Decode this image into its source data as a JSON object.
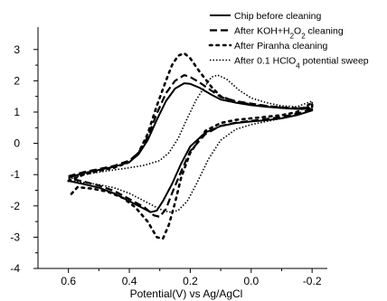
{
  "chart_data": {
    "type": "line",
    "title": "",
    "xlabel": "Potential(V) vs Ag/AgCl",
    "ylabel": "",
    "xlim": [
      0.7,
      -0.25
    ],
    "ylim": [
      -4,
      3.6
    ],
    "x_reversed": true,
    "xticks": [
      0.6,
      0.4,
      0.2,
      0.0,
      -0.2
    ],
    "xtick_labels": [
      "0.6",
      "0.4",
      "0.2",
      "0.0",
      "-0.2"
    ],
    "yticks": [
      -4,
      -3,
      -2,
      -1,
      0,
      1,
      2,
      3
    ],
    "yticks_labels": [
      "-4",
      "-3",
      "-2",
      "-1",
      "0",
      "1",
      "2",
      "3"
    ],
    "grid": false,
    "legend_position": "top-right",
    "series": [
      {
        "name": "Chip before cleaning",
        "style": "solid",
        "forward": [
          [
            0.6,
            -1.1
          ],
          [
            0.55,
            -0.95
          ],
          [
            0.5,
            -0.85
          ],
          [
            0.45,
            -0.75
          ],
          [
            0.4,
            -0.6
          ],
          [
            0.37,
            -0.35
          ],
          [
            0.34,
            0.1
          ],
          [
            0.31,
            0.75
          ],
          [
            0.28,
            1.35
          ],
          [
            0.25,
            1.75
          ],
          [
            0.22,
            1.92
          ],
          [
            0.2,
            1.9
          ],
          [
            0.17,
            1.78
          ],
          [
            0.13,
            1.55
          ],
          [
            0.1,
            1.4
          ],
          [
            0.05,
            1.3
          ],
          [
            0.0,
            1.22
          ],
          [
            -0.05,
            1.17
          ],
          [
            -0.1,
            1.13
          ],
          [
            -0.15,
            1.1
          ],
          [
            -0.2,
            1.1
          ]
        ],
        "reverse": [
          [
            -0.2,
            1.05
          ],
          [
            -0.15,
            0.9
          ],
          [
            -0.1,
            0.8
          ],
          [
            -0.05,
            0.74
          ],
          [
            0.0,
            0.7
          ],
          [
            0.05,
            0.65
          ],
          [
            0.1,
            0.55
          ],
          [
            0.15,
            0.35
          ],
          [
            0.2,
            -0.1
          ],
          [
            0.23,
            -0.65
          ],
          [
            0.26,
            -1.3
          ],
          [
            0.29,
            -1.85
          ],
          [
            0.31,
            -2.15
          ],
          [
            0.33,
            -2.2
          ],
          [
            0.36,
            -2.05
          ],
          [
            0.4,
            -1.85
          ],
          [
            0.45,
            -1.6
          ],
          [
            0.5,
            -1.42
          ],
          [
            0.55,
            -1.3
          ],
          [
            0.6,
            -1.2
          ]
        ]
      },
      {
        "name": "After KOH+H2O2 cleaning",
        "label_parts": [
          {
            "text": "After KOH+H",
            "sub": false
          },
          {
            "text": "2",
            "sub": true
          },
          {
            "text": "O",
            "sub": false
          },
          {
            "text": "2",
            "sub": true
          },
          {
            "text": " cleaning",
            "sub": false
          }
        ],
        "style": "dash",
        "forward": [
          [
            0.6,
            -1.05
          ],
          [
            0.55,
            -0.92
          ],
          [
            0.5,
            -0.82
          ],
          [
            0.45,
            -0.72
          ],
          [
            0.4,
            -0.55
          ],
          [
            0.37,
            -0.3
          ],
          [
            0.34,
            0.2
          ],
          [
            0.31,
            0.95
          ],
          [
            0.28,
            1.6
          ],
          [
            0.25,
            2.0
          ],
          [
            0.22,
            2.18
          ],
          [
            0.2,
            2.12
          ],
          [
            0.17,
            1.95
          ],
          [
            0.13,
            1.68
          ],
          [
            0.1,
            1.48
          ],
          [
            0.05,
            1.35
          ],
          [
            0.0,
            1.27
          ],
          [
            -0.05,
            1.2
          ],
          [
            -0.1,
            1.15
          ],
          [
            -0.15,
            1.12
          ],
          [
            -0.2,
            1.12
          ]
        ],
        "reverse": [
          [
            -0.2,
            1.08
          ],
          [
            -0.15,
            0.95
          ],
          [
            -0.1,
            0.84
          ],
          [
            -0.05,
            0.78
          ],
          [
            0.0,
            0.72
          ],
          [
            0.05,
            0.66
          ],
          [
            0.1,
            0.56
          ],
          [
            0.15,
            0.3
          ],
          [
            0.2,
            -0.25
          ],
          [
            0.23,
            -0.9
          ],
          [
            0.26,
            -1.6
          ],
          [
            0.28,
            -2.1
          ],
          [
            0.3,
            -2.35
          ],
          [
            0.32,
            -2.3
          ],
          [
            0.35,
            -2.05
          ],
          [
            0.4,
            -1.78
          ],
          [
            0.45,
            -1.52
          ],
          [
            0.5,
            -1.35
          ],
          [
            0.55,
            -1.22
          ],
          [
            0.6,
            -1.12
          ]
        ]
      },
      {
        "name": "After Piranha cleaning",
        "style": "dashdot",
        "forward": [
          [
            0.6,
            -1.2
          ],
          [
            0.55,
            -1.0
          ],
          [
            0.5,
            -0.88
          ],
          [
            0.45,
            -0.78
          ],
          [
            0.4,
            -0.6
          ],
          [
            0.37,
            -0.3
          ],
          [
            0.34,
            0.3
          ],
          [
            0.31,
            1.2
          ],
          [
            0.28,
            2.0
          ],
          [
            0.26,
            2.5
          ],
          [
            0.24,
            2.8
          ],
          [
            0.22,
            2.88
          ],
          [
            0.2,
            2.72
          ],
          [
            0.17,
            2.3
          ],
          [
            0.13,
            1.8
          ],
          [
            0.1,
            1.5
          ],
          [
            0.05,
            1.33
          ],
          [
            0.0,
            1.24
          ],
          [
            -0.05,
            1.18
          ],
          [
            -0.1,
            1.14
          ],
          [
            -0.15,
            1.12
          ],
          [
            -0.2,
            1.15
          ]
        ],
        "reverse": [
          [
            -0.2,
            1.3
          ],
          [
            -0.15,
            1.0
          ],
          [
            -0.1,
            0.9
          ],
          [
            -0.05,
            0.85
          ],
          [
            0.0,
            0.8
          ],
          [
            0.05,
            0.75
          ],
          [
            0.1,
            0.65
          ],
          [
            0.15,
            0.4
          ],
          [
            0.2,
            -0.3
          ],
          [
            0.23,
            -1.1
          ],
          [
            0.25,
            -1.9
          ],
          [
            0.27,
            -2.6
          ],
          [
            0.29,
            -3.05
          ],
          [
            0.31,
            -3.0
          ],
          [
            0.34,
            -2.5
          ],
          [
            0.38,
            -2.05
          ],
          [
            0.42,
            -1.75
          ],
          [
            0.47,
            -1.55
          ],
          [
            0.52,
            -1.45
          ],
          [
            0.57,
            -1.4
          ],
          [
            0.6,
            -1.72
          ]
        ]
      },
      {
        "name": "After 0.1 HClO4 potential sweep",
        "label_parts": [
          {
            "text": "After 0.1 HClO",
            "sub": false
          },
          {
            "text": "4",
            "sub": true
          },
          {
            "text": " potential sweep",
            "sub": false
          }
        ],
        "style": "dot",
        "forward": [
          [
            0.6,
            -1.15
          ],
          [
            0.55,
            -1.0
          ],
          [
            0.5,
            -0.92
          ],
          [
            0.45,
            -0.85
          ],
          [
            0.4,
            -0.78
          ],
          [
            0.35,
            -0.7
          ],
          [
            0.3,
            -0.55
          ],
          [
            0.27,
            -0.3
          ],
          [
            0.24,
            0.15
          ],
          [
            0.21,
            0.8
          ],
          [
            0.18,
            1.4
          ],
          [
            0.15,
            1.85
          ],
          [
            0.13,
            2.12
          ],
          [
            0.11,
            2.18
          ],
          [
            0.08,
            2.05
          ],
          [
            0.04,
            1.7
          ],
          [
            0.0,
            1.45
          ],
          [
            -0.05,
            1.3
          ],
          [
            -0.1,
            1.2
          ],
          [
            -0.15,
            1.17
          ],
          [
            -0.2,
            1.35
          ]
        ],
        "reverse": [
          [
            -0.2,
            1.05
          ],
          [
            -0.15,
            0.9
          ],
          [
            -0.1,
            0.8
          ],
          [
            -0.05,
            0.7
          ],
          [
            0.0,
            0.6
          ],
          [
            0.05,
            0.45
          ],
          [
            0.1,
            0.1
          ],
          [
            0.14,
            -0.5
          ],
          [
            0.18,
            -1.3
          ],
          [
            0.21,
            -1.85
          ],
          [
            0.24,
            -2.15
          ],
          [
            0.27,
            -2.2
          ],
          [
            0.3,
            -2.1
          ],
          [
            0.35,
            -1.85
          ],
          [
            0.4,
            -1.6
          ],
          [
            0.45,
            -1.42
          ],
          [
            0.5,
            -1.32
          ],
          [
            0.55,
            -1.25
          ],
          [
            0.6,
            -1.2
          ]
        ]
      }
    ]
  }
}
